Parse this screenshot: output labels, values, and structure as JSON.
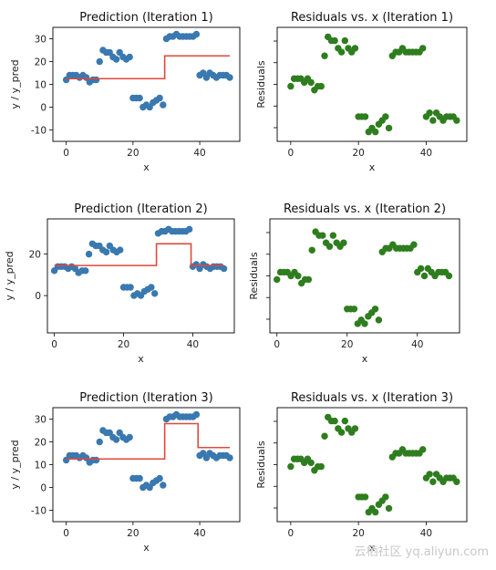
{
  "colors": {
    "points_prediction": "#3a78b0",
    "line_prediction": "#e0483d",
    "points_residual": "#2e7d1e",
    "frame": "#000000",
    "tick_text": "#222222"
  },
  "watermark": "云栖社区 yq.aliyun.com",
  "chart_data": [
    {
      "type": "scatter",
      "title": "Prediction (Iteration 1)",
      "xlabel": "x",
      "ylabel": "y / y_pred",
      "xlim": [
        -4,
        52
      ],
      "ylim": [
        -15,
        35
      ],
      "xticks": [
        0,
        20,
        40
      ],
      "yticks": [
        -10,
        0,
        10,
        20,
        30
      ],
      "series": [
        {
          "kind": "points",
          "x": [
            0,
            1,
            2,
            3,
            4,
            5,
            6,
            7,
            8,
            9,
            10,
            11,
            12,
            13,
            14,
            15,
            16,
            17,
            18,
            19,
            20,
            21,
            22,
            23,
            24,
            25,
            26,
            27,
            28,
            29,
            30,
            31,
            32,
            33,
            34,
            35,
            36,
            37,
            38,
            39,
            40,
            41,
            42,
            43,
            44,
            45,
            46,
            47,
            48,
            49
          ],
          "y": [
            12,
            14,
            14,
            14,
            13,
            14,
            13,
            11,
            12,
            12,
            20,
            25,
            24,
            24,
            22,
            21,
            24,
            22,
            21,
            22,
            4,
            4,
            4,
            0,
            1,
            0,
            2,
            3,
            4,
            1,
            30,
            31,
            31,
            32,
            31,
            31,
            31,
            31,
            31,
            32,
            14,
            15,
            13,
            15,
            14,
            13,
            14,
            14,
            14,
            13
          ]
        },
        {
          "kind": "line",
          "x": [
            0,
            29.5,
            29.5,
            49
          ],
          "y": [
            12.5,
            12.5,
            22.5,
            22.5
          ]
        }
      ]
    },
    {
      "type": "scatter",
      "title": "Residuals vs. x (Iteration 1)",
      "xlabel": "x",
      "ylabel": "Residuals",
      "xlim": [
        -4,
        52
      ],
      "ylim": [
        -15,
        15
      ],
      "xticks": [
        0,
        20,
        40
      ],
      "yticks": [],
      "series": [
        {
          "kind": "points",
          "x": [
            0,
            1,
            2,
            3,
            4,
            5,
            6,
            7,
            8,
            9,
            10,
            11,
            12,
            13,
            14,
            15,
            16,
            17,
            18,
            19,
            20,
            21,
            22,
            23,
            24,
            25,
            26,
            27,
            28,
            29,
            30,
            31,
            32,
            33,
            34,
            35,
            36,
            37,
            38,
            39,
            40,
            41,
            42,
            43,
            44,
            45,
            46,
            47,
            48,
            49
          ],
          "y": [
            -0.5,
            1.5,
            1.5,
            1.5,
            0.5,
            1.5,
            0.5,
            -1.5,
            -0.5,
            -0.5,
            7.5,
            12.5,
            11.5,
            11.5,
            9.5,
            8.5,
            11.5,
            9.5,
            8.5,
            9.5,
            -8.5,
            -8.5,
            -8.5,
            -12.5,
            -11.5,
            -12.5,
            -10.5,
            -9.5,
            -8.5,
            -11.5,
            7.5,
            8.5,
            8.5,
            9.5,
            8.5,
            8.5,
            8.5,
            8.5,
            8.5,
            9.5,
            -8.5,
            -7.5,
            -9.5,
            -7.5,
            -8.5,
            -9.5,
            -8.5,
            -8.5,
            -8.5,
            -9.5
          ]
        }
      ]
    },
    {
      "type": "scatter",
      "title": "Prediction (Iteration 2)",
      "xlabel": "x",
      "ylabel": "y / y_pred",
      "xlim": [
        -2,
        52
      ],
      "ylim": [
        -18,
        37
      ],
      "xticks": [
        0,
        20,
        40
      ],
      "yticks": [
        0,
        20
      ],
      "series": [
        {
          "kind": "points",
          "x": [
            0,
            1,
            2,
            3,
            4,
            5,
            6,
            7,
            8,
            9,
            10,
            11,
            12,
            13,
            14,
            15,
            16,
            17,
            18,
            19,
            20,
            21,
            22,
            23,
            24,
            25,
            26,
            27,
            28,
            29,
            30,
            31,
            32,
            33,
            34,
            35,
            36,
            37,
            38,
            39,
            40,
            41,
            42,
            43,
            44,
            45,
            46,
            47,
            48,
            49
          ],
          "y": [
            12,
            14,
            14,
            14,
            13,
            14,
            13,
            11,
            12,
            12,
            20,
            25,
            24,
            24,
            22,
            21,
            24,
            22,
            21,
            22,
            4,
            4,
            4,
            0,
            1,
            0,
            2,
            3,
            4,
            1,
            30,
            31,
            31,
            32,
            31,
            31,
            31,
            31,
            31,
            32,
            14,
            15,
            13,
            15,
            14,
            13,
            14,
            14,
            14,
            13
          ]
        },
        {
          "kind": "line",
          "x": [
            0,
            29.5,
            29.5,
            39.5,
            39.5,
            49
          ],
          "y": [
            14.5,
            14.5,
            25,
            25,
            14.5,
            14.5
          ]
        }
      ]
    },
    {
      "type": "scatter",
      "title": "Residuals vs. x (Iteration 2)",
      "xlabel": "x",
      "ylabel": "Residuals",
      "xlim": [
        -2,
        52
      ],
      "ylim": [
        -17,
        14
      ],
      "xticks": [
        0,
        20,
        40
      ],
      "yticks": [],
      "series": [
        {
          "kind": "points",
          "x": [
            0,
            1,
            2,
            3,
            4,
            5,
            6,
            7,
            8,
            9,
            10,
            11,
            12,
            13,
            14,
            15,
            16,
            17,
            18,
            19,
            20,
            21,
            22,
            23,
            24,
            25,
            26,
            27,
            28,
            29,
            30,
            31,
            32,
            33,
            34,
            35,
            36,
            37,
            38,
            39,
            40,
            41,
            42,
            43,
            44,
            45,
            46,
            47,
            48,
            49
          ],
          "y": [
            -2.5,
            -0.5,
            -0.5,
            -0.5,
            -1.5,
            -0.5,
            -1.5,
            -3.5,
            -2.5,
            -2.5,
            5.5,
            10.5,
            9.5,
            9.5,
            7.5,
            6.5,
            9.5,
            7.5,
            6.5,
            7.5,
            -10.5,
            -10.5,
            -10.5,
            -14.5,
            -13.5,
            -14.5,
            -12.5,
            -11.5,
            -10.5,
            -13.5,
            5,
            6,
            6,
            7,
            6,
            6,
            6,
            6,
            6,
            7,
            -0.5,
            0.5,
            -1.5,
            0.5,
            -0.5,
            -1.5,
            -0.5,
            -0.5,
            -0.5,
            -1.5
          ]
        }
      ]
    },
    {
      "type": "scatter",
      "title": "Prediction (Iteration 3)",
      "xlabel": "x",
      "ylabel": "y / y_pred",
      "xlim": [
        -4,
        52
      ],
      "ylim": [
        -15,
        35
      ],
      "xticks": [
        0,
        20,
        40
      ],
      "yticks": [
        -10,
        0,
        10,
        20,
        30
      ],
      "series": [
        {
          "kind": "points",
          "x": [
            0,
            1,
            2,
            3,
            4,
            5,
            6,
            7,
            8,
            9,
            10,
            11,
            12,
            13,
            14,
            15,
            16,
            17,
            18,
            19,
            20,
            21,
            22,
            23,
            24,
            25,
            26,
            27,
            28,
            29,
            30,
            31,
            32,
            33,
            34,
            35,
            36,
            37,
            38,
            39,
            40,
            41,
            42,
            43,
            44,
            45,
            46,
            47,
            48,
            49
          ],
          "y": [
            12,
            14,
            14,
            14,
            13,
            14,
            13,
            11,
            12,
            12,
            20,
            25,
            24,
            24,
            22,
            21,
            24,
            22,
            21,
            22,
            4,
            4,
            4,
            0,
            1,
            0,
            2,
            3,
            4,
            1,
            30,
            31,
            31,
            32,
            31,
            31,
            31,
            31,
            31,
            32,
            14,
            15,
            13,
            15,
            14,
            13,
            14,
            14,
            14,
            13
          ]
        },
        {
          "kind": "line",
          "x": [
            0,
            29.5,
            29.5,
            39.5,
            39.5,
            49
          ],
          "y": [
            12.5,
            12.5,
            28,
            28,
            17.5,
            17.5
          ]
        }
      ]
    },
    {
      "type": "scatter",
      "title": "Residuals vs. x (Iteration 3)",
      "xlabel": "x",
      "ylabel": "Residuals",
      "xlim": [
        -4,
        52
      ],
      "ylim": [
        -15,
        15
      ],
      "xticks": [
        0,
        20,
        40
      ],
      "yticks": [],
      "series": [
        {
          "kind": "points",
          "x": [
            0,
            1,
            2,
            3,
            4,
            5,
            6,
            7,
            8,
            9,
            10,
            11,
            12,
            13,
            14,
            15,
            16,
            17,
            18,
            19,
            20,
            21,
            22,
            23,
            24,
            25,
            26,
            27,
            28,
            29,
            30,
            31,
            32,
            33,
            34,
            35,
            36,
            37,
            38,
            39,
            40,
            41,
            42,
            43,
            44,
            45,
            46,
            47,
            48,
            49
          ],
          "y": [
            -0.5,
            1.5,
            1.5,
            1.5,
            0.5,
            1.5,
            0.5,
            -1.5,
            -0.5,
            -0.5,
            7.5,
            12.5,
            11.5,
            11.5,
            9.5,
            8.5,
            11.5,
            9.5,
            8.5,
            9.5,
            -8.5,
            -8.5,
            -8.5,
            -12.5,
            -11.5,
            -12.5,
            -10.5,
            -9.5,
            -8.5,
            -11.5,
            2,
            3,
            3,
            4,
            3,
            3,
            3,
            3,
            3,
            4,
            -3.5,
            -2.5,
            -4.5,
            -2.5,
            -3.5,
            -4.5,
            -3.5,
            -3.5,
            -3.5,
            -4.5
          ]
        }
      ]
    }
  ]
}
